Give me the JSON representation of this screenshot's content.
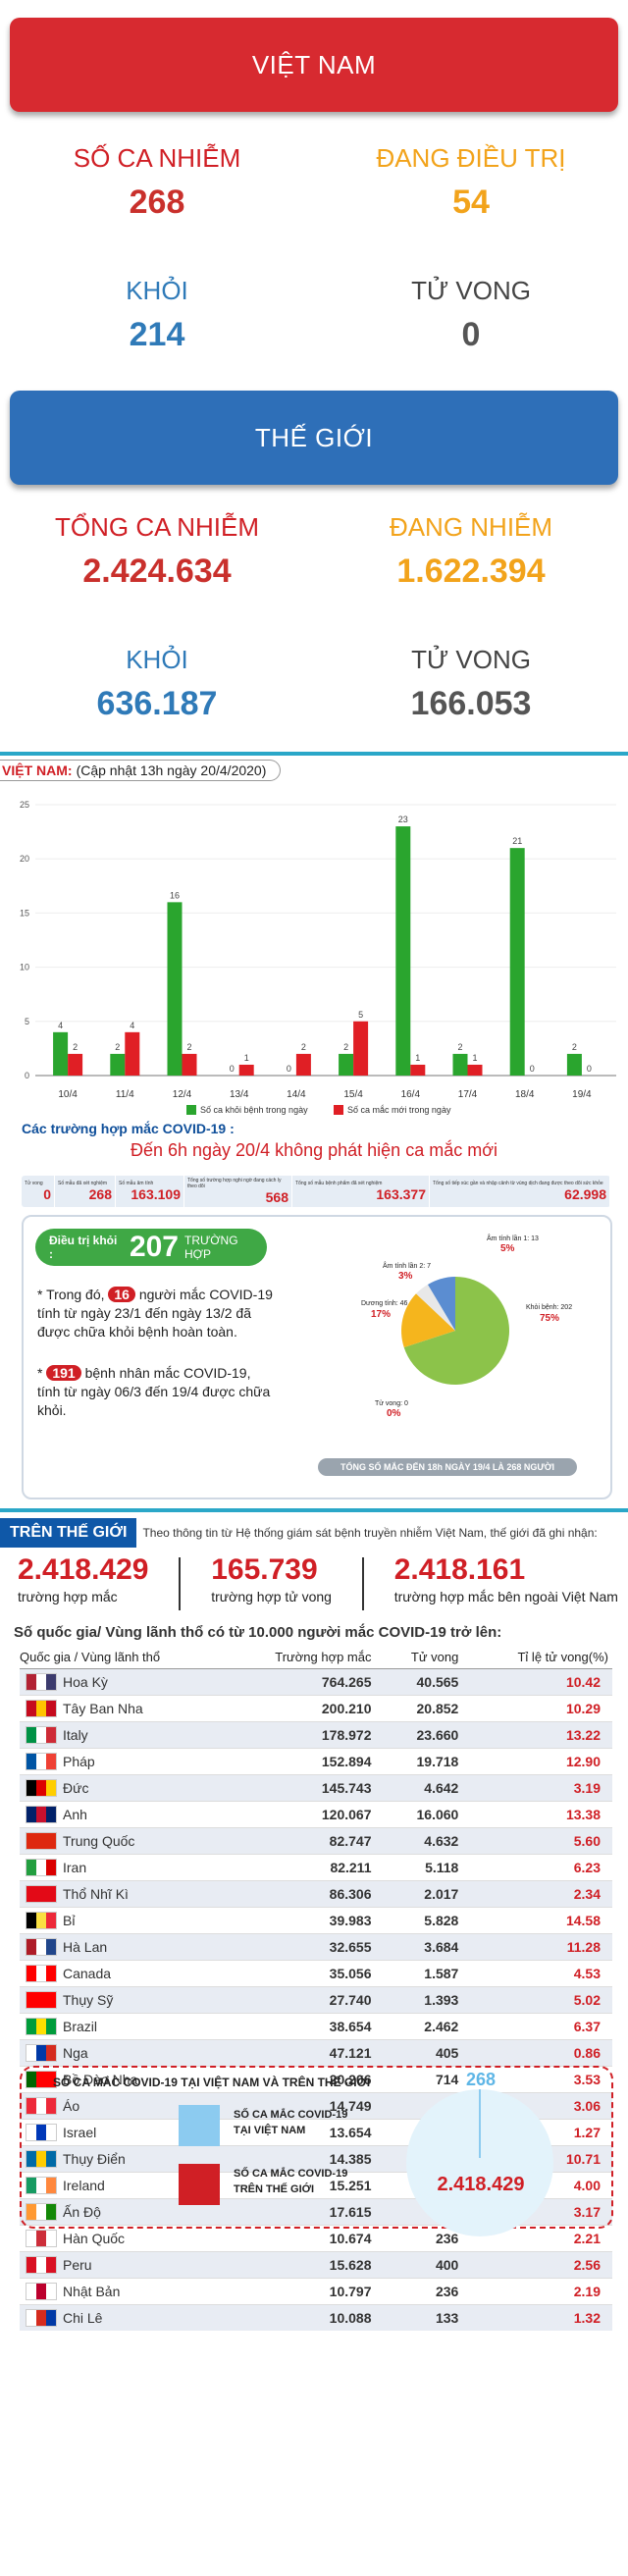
{
  "vietnam": {
    "banner": "VIỆT NAM",
    "confirmed_label": "SỐ CA NHIỄM",
    "confirmed": "268",
    "treating_label": "ĐANG ĐIỀU TRỊ",
    "treating": "54",
    "recovered_label": "KHỎI",
    "recovered": "214",
    "deaths_label": "TỬ VONG",
    "deaths": "0"
  },
  "world": {
    "banner": "THẾ GIỚI",
    "confirmed_label": "TỔNG CA NHIỄM",
    "confirmed": "2.424.634",
    "active_label": "ĐANG NHIỄM",
    "active": "1.622.394",
    "recovered_label": "KHỎI",
    "recovered": "636.187",
    "deaths_label": "TỬ VONG",
    "deaths": "166.053"
  },
  "colors": {
    "red": "#d01f25",
    "orange": "#f2a31b",
    "blue": "#2f7ab8",
    "gray": "#444444",
    "banner_red": "#d72a30",
    "banner_blue": "#2e6fb8",
    "green": "#2aa52e",
    "bar_red": "#e01f25"
  },
  "infographic": {
    "title_red": "VIỆT NAM:",
    "title_rest": "(Cập nhật 13h ngày 20/4/2020)",
    "legend_green": "Số ca khỏi bệnh trong ngày",
    "legend_red": "Số ca mắc mới trong ngày",
    "cases_heading": "Các trường hợp mắc COVID-19 :",
    "no_new_cases": "Đến 6h ngày 20/4 không phát hiện ca mắc mới",
    "stats": [
      {
        "label": "Tử vong",
        "value": "0"
      },
      {
        "label": "Số mẫu đã xét nghiệm",
        "value": "268"
      },
      {
        "label": "Số mẫu âm tính",
        "value": "163.109"
      },
      {
        "label": "Tổng số trường hợp nghi ngờ đang cách ly theo dõi",
        "value": "568"
      },
      {
        "label": "Tổng số mẫu bệnh phẩm đã xét nghiệm",
        "value": "163.377"
      },
      {
        "label": "Tổng số tiếp xúc gần và nhập cảnh từ vùng dịch đang được theo dõi sức khỏe",
        "value": "62.998"
      }
    ],
    "recovered_pill_label": "Điều trị khỏi :",
    "recovered_pill_value": "207",
    "recovered_pill_unit": "TRƯỜNG HỢP",
    "para1_a": "Trong đó,",
    "para1_num": "16",
    "para1_b": "người mắc COVID-19 tính từ ngày 23/1 đến ngày 13/2 đã được chữa khỏi bệnh hoàn toàn.",
    "para2_num": "191",
    "para2_b": "bệnh nhân mắc COVID-19, tính từ ngày 06/3 đến 19/4 được chữa khỏi.",
    "pie_labels": {
      "retest1": "Âm tính lần 1: 13",
      "retest1_pct": "5%",
      "retest2": "Âm tính lần 2: 7",
      "retest2_pct": "3%",
      "positive": "Dương tính: 46",
      "positive_pct": "17%",
      "recovered": "Khỏi bệnh: 202",
      "recovered_pct": "75%",
      "deaths": "Tử vong: 0",
      "deaths_pct": "0%"
    },
    "footer_total": "TỔNG SỐ MẮC ĐẾN 18h NGÀY 19/4 LÀ 268 NGƯỜI"
  },
  "chart_data": {
    "type": "bar",
    "categories": [
      "10/4",
      "11/4",
      "12/4",
      "13/4",
      "14/4",
      "15/4",
      "16/4",
      "17/4",
      "18/4",
      "19/4"
    ],
    "series": [
      {
        "name": "Số ca khỏi bệnh trong ngày",
        "values": [
          4,
          2,
          16,
          0,
          0,
          2,
          23,
          2,
          21,
          2
        ]
      },
      {
        "name": "Số ca mắc mới trong ngày",
        "values": [
          2,
          4,
          2,
          1,
          2,
          5,
          1,
          1,
          0,
          0
        ]
      }
    ],
    "yticks": [
      0,
      5,
      10,
      15,
      20,
      25
    ],
    "ylim": [
      0,
      25
    ]
  },
  "world_section": {
    "tab": "TRÊN THẾ GIỚI",
    "note": "Theo thông tin từ Hệ thống giám sát bệnh truyền nhiễm Việt Nam, thế giới đã ghi nhận:",
    "total": "2.418.429",
    "total_label": "trường hợp mắc",
    "deaths": "165.739",
    "deaths_label": "trường hợp tử vong",
    "outside": "2.418.161",
    "outside_label": "trường hợp mắc bên ngoài Việt Nam",
    "table_heading": "Số quốc gia/ Vùng lãnh thổ có từ 10.000 người mắc COVID-19 trở lên:",
    "headers": [
      "Quốc gia / Vùng lãnh thổ",
      "Trường hợp mắc",
      "Tử vong",
      "Tỉ lệ tử vong(%)"
    ],
    "rows": [
      {
        "name": "Hoa Kỳ",
        "cases": "764.265",
        "deaths": "40.565",
        "rate": "10.42",
        "flag": [
          "#b22234",
          "#ffffff",
          "#3c3b6e"
        ]
      },
      {
        "name": "Tây Ban Nha",
        "cases": "200.210",
        "deaths": "20.852",
        "rate": "10.29",
        "flag": [
          "#c60b1e",
          "#ffc400",
          "#c60b1e"
        ]
      },
      {
        "name": "Italy",
        "cases": "178.972",
        "deaths": "23.660",
        "rate": "13.22",
        "flag": [
          "#009246",
          "#ffffff",
          "#ce2b37"
        ]
      },
      {
        "name": "Pháp",
        "cases": "152.894",
        "deaths": "19.718",
        "rate": "12.90",
        "flag": [
          "#0055a4",
          "#ffffff",
          "#ef4135"
        ]
      },
      {
        "name": "Đức",
        "cases": "145.743",
        "deaths": "4.642",
        "rate": "3.19",
        "flag": [
          "#000000",
          "#dd0000",
          "#ffce00"
        ]
      },
      {
        "name": "Anh",
        "cases": "120.067",
        "deaths": "16.060",
        "rate": "13.38",
        "flag": [
          "#012169",
          "#c8102e",
          "#012169"
        ]
      },
      {
        "name": "Trung Quốc",
        "cases": "82.747",
        "deaths": "4.632",
        "rate": "5.60",
        "flag": [
          "#de2910",
          "#de2910",
          "#de2910"
        ]
      },
      {
        "name": "Iran",
        "cases": "82.211",
        "deaths": "5.118",
        "rate": "6.23",
        "flag": [
          "#239f40",
          "#ffffff",
          "#da0000"
        ]
      },
      {
        "name": "Thổ Nhĩ Kì",
        "cases": "86.306",
        "deaths": "2.017",
        "rate": "2.34",
        "flag": [
          "#e30a17",
          "#e30a17",
          "#e30a17"
        ]
      },
      {
        "name": "Bỉ",
        "cases": "39.983",
        "deaths": "5.828",
        "rate": "14.58",
        "flag": [
          "#000000",
          "#fae042",
          "#ed2939"
        ]
      },
      {
        "name": "Hà Lan",
        "cases": "32.655",
        "deaths": "3.684",
        "rate": "11.28",
        "flag": [
          "#ae1c28",
          "#ffffff",
          "#21468b"
        ]
      },
      {
        "name": "Canada",
        "cases": "35.056",
        "deaths": "1.587",
        "rate": "4.53",
        "flag": [
          "#ff0000",
          "#ffffff",
          "#ff0000"
        ]
      },
      {
        "name": "Thụy Sỹ",
        "cases": "27.740",
        "deaths": "1.393",
        "rate": "5.02",
        "flag": [
          "#ff0000",
          "#ff0000",
          "#ff0000"
        ]
      },
      {
        "name": "Brazil",
        "cases": "38.654",
        "deaths": "2.462",
        "rate": "6.37",
        "flag": [
          "#009c3b",
          "#ffdf00",
          "#009c3b"
        ]
      },
      {
        "name": "Nga",
        "cases": "47.121",
        "deaths": "405",
        "rate": "0.86",
        "flag": [
          "#ffffff",
          "#0039a6",
          "#d52b1e"
        ]
      },
      {
        "name": "Bồ Đào Nha",
        "cases": "20.206",
        "deaths": "714",
        "rate": "3.53",
        "flag": [
          "#006600",
          "#ff0000",
          "#ff0000"
        ]
      },
      {
        "name": "Áo",
        "cases": "14.749",
        "deaths": "452",
        "rate": "3.06",
        "flag": [
          "#ed2939",
          "#ffffff",
          "#ed2939"
        ]
      },
      {
        "name": "Israel",
        "cases": "13.654",
        "deaths": "173",
        "rate": "1.27",
        "flag": [
          "#ffffff",
          "#0038b8",
          "#ffffff"
        ]
      },
      {
        "name": "Thụy Điển",
        "cases": "14.385",
        "deaths": "1.540",
        "rate": "10.71",
        "flag": [
          "#006aa7",
          "#fecc00",
          "#006aa7"
        ]
      },
      {
        "name": "Ireland",
        "cases": "15.251",
        "deaths": "610",
        "rate": "4.00",
        "flag": [
          "#169b62",
          "#ffffff",
          "#ff883e"
        ]
      },
      {
        "name": "Ấn Độ",
        "cases": "17.615",
        "deaths": "559",
        "rate": "3.17",
        "flag": [
          "#ff9933",
          "#ffffff",
          "#138808"
        ]
      },
      {
        "name": "Hàn Quốc",
        "cases": "10.674",
        "deaths": "236",
        "rate": "2.21",
        "flag": [
          "#ffffff",
          "#cd2e3a",
          "#ffffff"
        ]
      },
      {
        "name": "Peru",
        "cases": "15.628",
        "deaths": "400",
        "rate": "2.56",
        "flag": [
          "#d91023",
          "#ffffff",
          "#d91023"
        ]
      },
      {
        "name": "Nhật Bản",
        "cases": "10.797",
        "deaths": "236",
        "rate": "2.19",
        "flag": [
          "#ffffff",
          "#bc002d",
          "#ffffff"
        ]
      },
      {
        "name": "Chi Lê",
        "cases": "10.088",
        "deaths": "133",
        "rate": "1.32",
        "flag": [
          "#ffffff",
          "#d52b1e",
          "#0039a6"
        ]
      }
    ]
  },
  "comparison": {
    "title": "SỐ CA MẮC COVID-19 TẠI VIỆT NAM VÀ TRÊN THẾ GIỚI",
    "legend_vn": "SỐ CA MẮC COVID-19 TẠI VIỆT NAM",
    "legend_world": "SỐ CA MẮC COVID-19 TRÊN THẾ GIỚI",
    "vn_value": "268",
    "world_value": "2.418.429"
  }
}
